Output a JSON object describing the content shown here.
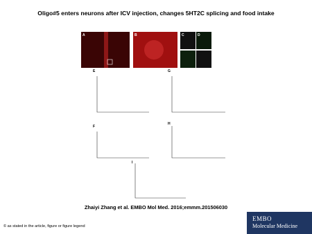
{
  "header": {
    "title": "Oligo#5 enters neurons after ICV injection, changes 5HT2C splicing and food intake"
  },
  "figure": {
    "panels": [
      "A",
      "B",
      "C",
      "D",
      "E",
      "F",
      "G",
      "H",
      "I"
    ]
  },
  "citation": "Zhaiyi Zhang et al. EMBO Mol Med. 2016;emmm.201506030",
  "footer": {
    "copyright": "© as stated in the article, figure or figure legend",
    "logo": {
      "line1": "EMBO",
      "line2": "Molecular Medicine"
    }
  }
}
